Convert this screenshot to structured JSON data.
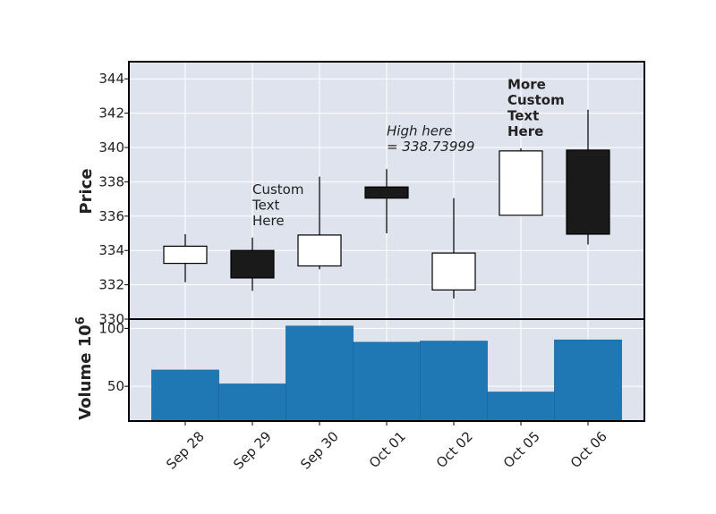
{
  "chart_data": {
    "type": "candlestick",
    "categories": [
      "Sep 28",
      "Sep 29",
      "Sep 30",
      "Oct 01",
      "Oct 02",
      "Oct 05",
      "Oct 06"
    ],
    "candles": [
      {
        "open": 333.25,
        "high": 334.95,
        "low": 332.15,
        "close": 334.25
      },
      {
        "open": 334.0,
        "high": 334.75,
        "low": 331.65,
        "close": 332.4
      },
      {
        "open": 333.1,
        "high": 338.3,
        "low": 332.9,
        "close": 334.9
      },
      {
        "open": 337.7,
        "high": 338.74,
        "low": 335.0,
        "close": 337.05
      },
      {
        "open": 331.7,
        "high": 337.05,
        "low": 331.2,
        "close": 333.85
      },
      {
        "open": 336.05,
        "high": 339.95,
        "low": 336.05,
        "close": 339.8
      },
      {
        "open": 339.85,
        "high": 342.2,
        "low": 334.35,
        "close": 334.95
      }
    ],
    "volume": [
      64,
      52,
      102,
      88,
      89,
      45,
      90
    ],
    "price_axis": {
      "label": "Price",
      "ylim": [
        330,
        345
      ],
      "ticks": [
        330,
        332,
        334,
        336,
        338,
        340,
        342,
        344
      ]
    },
    "volume_axis": {
      "label": "Volume  10",
      "label_exponent": "6",
      "ylim": [
        20,
        108
      ],
      "ticks": [
        50,
        100
      ]
    },
    "colors": {
      "up_fill": "#ffffff",
      "down_fill": "#1a1a1a",
      "volume": "#1f77b4",
      "panel_bg": "#dfe3ee",
      "grid": "#ffffff"
    },
    "annotations": [
      {
        "lines": [
          "Custom",
          "Text",
          "Here"
        ],
        "style": "normal",
        "x_index": 1.0,
        "y_value": 337.3
      },
      {
        "lines": [
          "High here",
          "= 338.73999"
        ],
        "style": "italic",
        "x_index": 3.0,
        "y_value": 340.7
      },
      {
        "lines": [
          "More",
          "Custom",
          "Text",
          "Here"
        ],
        "style": "bold",
        "x_index": 4.8,
        "y_value": 343.4
      }
    ]
  }
}
